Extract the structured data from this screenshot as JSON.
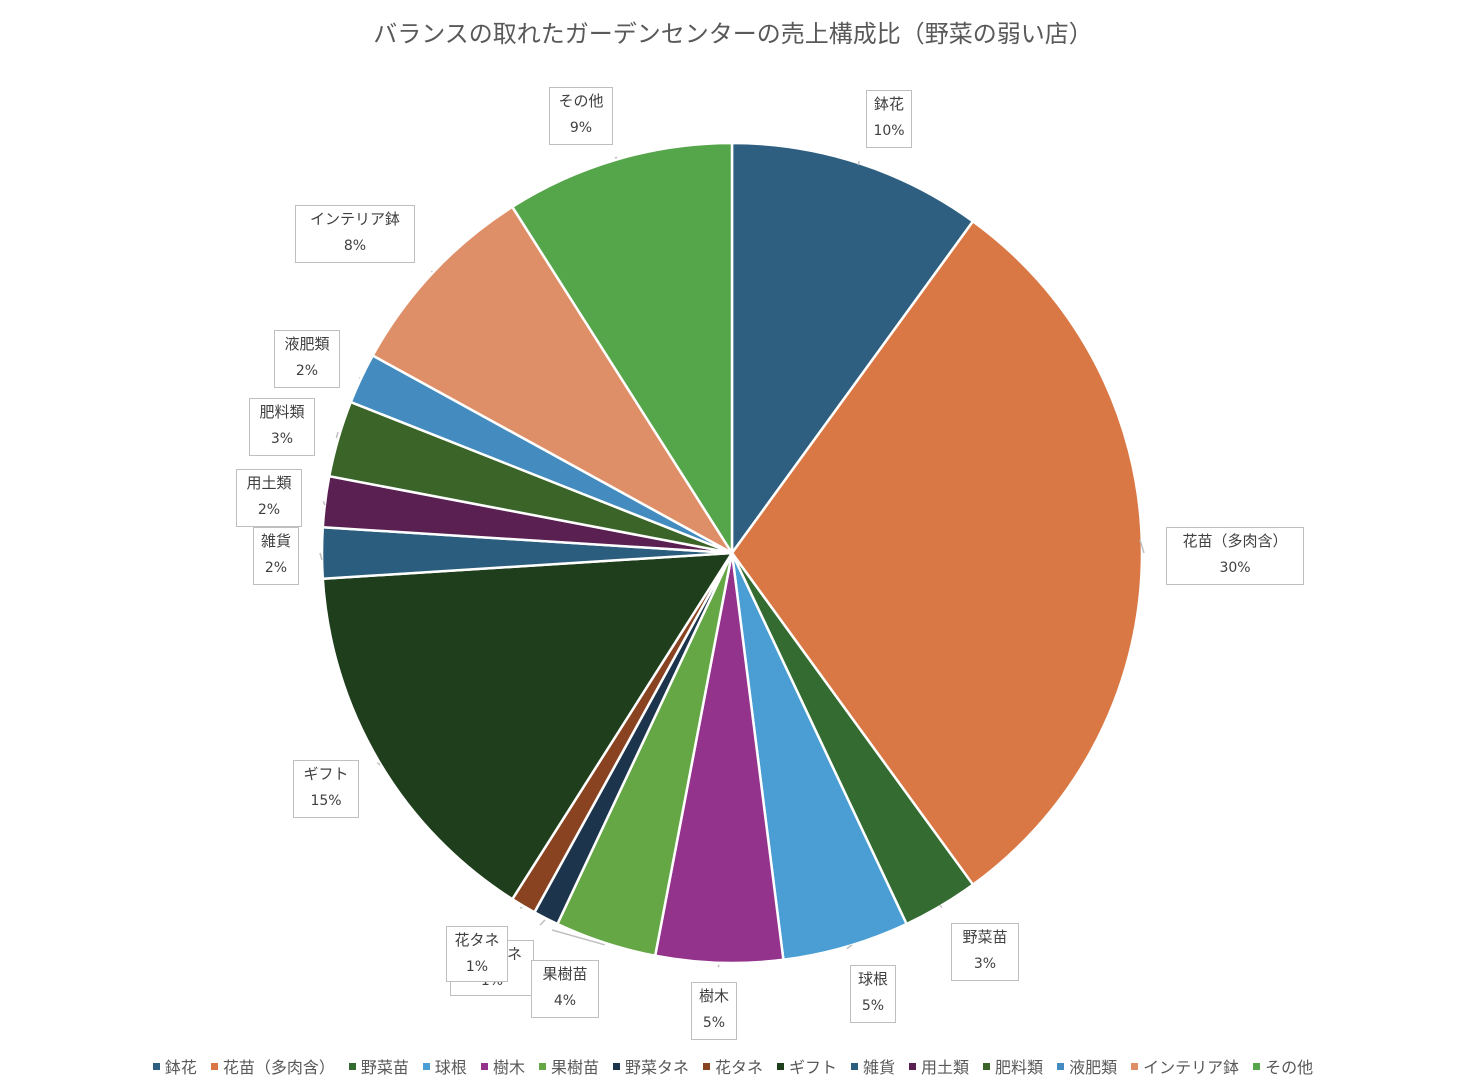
{
  "chart_data": {
    "type": "pie",
    "title": "バランスの取れたガーデンセンターの売上構成比（野菜の弱い店）",
    "start_angle_deg": 0,
    "direction": "clockwise",
    "legend_position": "bottom",
    "slices": [
      {
        "name": "鉢花",
        "value": 10,
        "label": "10%",
        "color": "#2e5f80"
      },
      {
        "name": "花苗（多肉含）",
        "value": 30,
        "label": "30%",
        "color": "#d97844"
      },
      {
        "name": "野菜苗",
        "value": 3,
        "label": "3%",
        "color": "#336b30"
      },
      {
        "name": "球根",
        "value": 5,
        "label": "5%",
        "color": "#4a9ed4"
      },
      {
        "name": "樹木",
        "value": 5,
        "label": "5%",
        "color": "#94338b"
      },
      {
        "name": "果樹苗",
        "value": 4,
        "label": "4%",
        "color": "#65a745"
      },
      {
        "name": "野菜タネ",
        "value": 1,
        "label": "1%",
        "color": "#1c344c"
      },
      {
        "name": "花タネ",
        "value": 1,
        "label": "1%",
        "color": "#8a4320"
      },
      {
        "name": "ギフト",
        "value": 15,
        "label": "15%",
        "color": "#1f3e1c"
      },
      {
        "name": "雑貨",
        "value": 2,
        "label": "2%",
        "color": "#2b5e7e"
      },
      {
        "name": "用土類",
        "value": 2,
        "label": "2%",
        "color": "#5a2052"
      },
      {
        "name": "肥料類",
        "value": 3,
        "label": "3%",
        "color": "#3b6428"
      },
      {
        "name": "液肥類",
        "value": 2,
        "label": "2%",
        "color": "#448cbf"
      },
      {
        "name": "インテリア鉢",
        "value": 8,
        "label": "8%",
        "color": "#df8f68"
      },
      {
        "name": "その他",
        "value": 9,
        "label": "9%",
        "color": "#55a54a"
      }
    ]
  }
}
